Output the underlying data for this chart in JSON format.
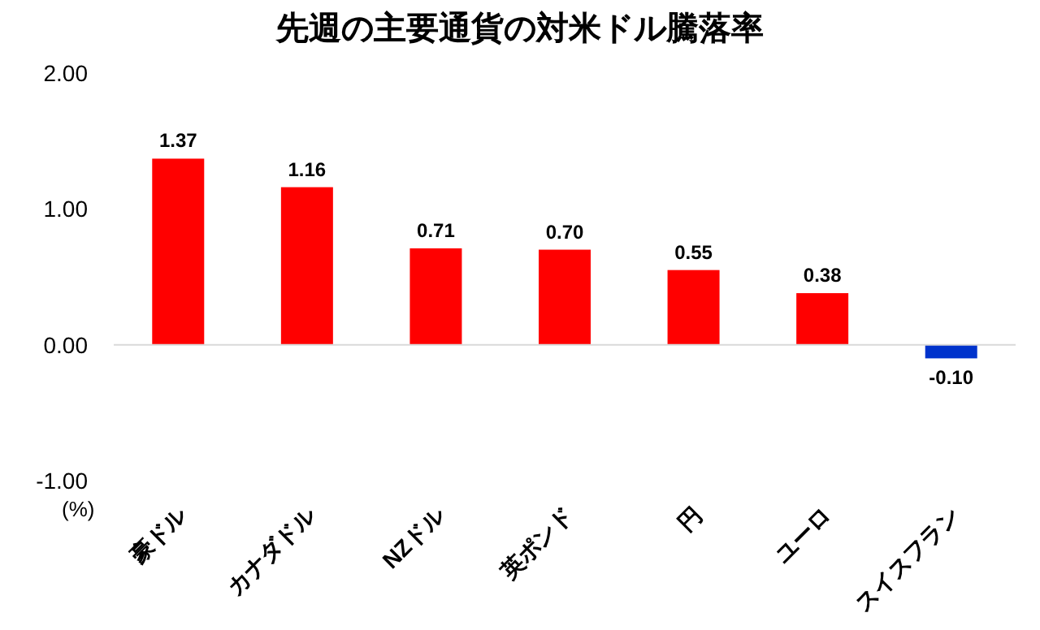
{
  "chart_data": {
    "type": "bar",
    "title": "先週の主要通貨の対米ドル騰落率",
    "categories": [
      "豪ドル",
      "カナダドル",
      "NZドル",
      "英ポンド",
      "円",
      "ユーロ",
      "スイスフラン"
    ],
    "values": [
      1.37,
      1.16,
      0.71,
      0.7,
      0.55,
      0.38,
      -0.1
    ],
    "colors": [
      "#ff0000",
      "#ff0000",
      "#ff0000",
      "#ff0000",
      "#ff0000",
      "#ff0000",
      "#0033cc"
    ],
    "ylim": [
      -1,
      2
    ],
    "yticks": [
      {
        "value": -1,
        "label": "-1.00"
      },
      {
        "value": 0,
        "label": "0.00"
      },
      {
        "value": 1,
        "label": "1.00"
      },
      {
        "value": 2,
        "label": "2.00"
      }
    ],
    "ylabel": "(%)",
    "value_labels": [
      "1.37",
      "1.16",
      "0.71",
      "0.70",
      "0.55",
      "0.38",
      "-0.10"
    ]
  }
}
